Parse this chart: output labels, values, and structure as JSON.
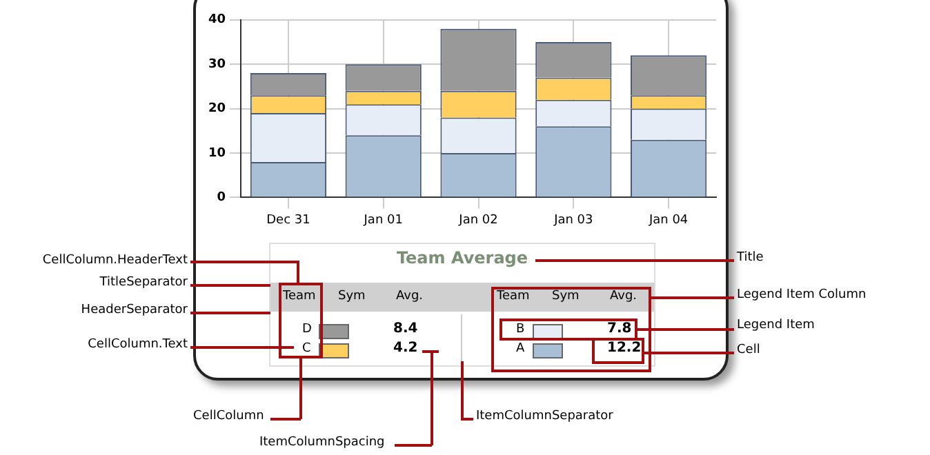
{
  "chart_data": {
    "type": "bar",
    "categories": [
      "Dec 31",
      "Jan 01",
      "Jan 02",
      "Jan 03",
      "Jan 04"
    ],
    "stacked": true,
    "series": [
      {
        "name": "A",
        "color": "#a9bfd6",
        "values": [
          8,
          14,
          10,
          16,
          13
        ]
      },
      {
        "name": "B",
        "color": "#e6edf7",
        "values": [
          11,
          7,
          8,
          6,
          7
        ]
      },
      {
        "name": "C",
        "color": "#ffd060",
        "values": [
          4,
          3,
          6,
          5,
          3
        ]
      },
      {
        "name": "D",
        "color": "#999999",
        "values": [
          5,
          6,
          14,
          8,
          9
        ]
      }
    ],
    "ylim": [
      0,
      40
    ],
    "yticks": [
      0,
      10,
      20,
      30,
      40
    ],
    "grid": true,
    "legend": "bottom",
    "legend_title": "Team Average",
    "annotations": [
      "Team",
      "Sym",
      "Avg.",
      "12.2",
      "7.8",
      "4.2",
      "8.4",
      "CellColumn.HeaderText",
      "TitleSeparator",
      "HeaderSeparator",
      "CellColumn.Text",
      "CellColumn",
      "ItemColumnSpacing",
      "ItemColumnSeparator",
      "Title",
      "Legend Item Column",
      "Legend Item",
      "Cell"
    ]
  }
}
